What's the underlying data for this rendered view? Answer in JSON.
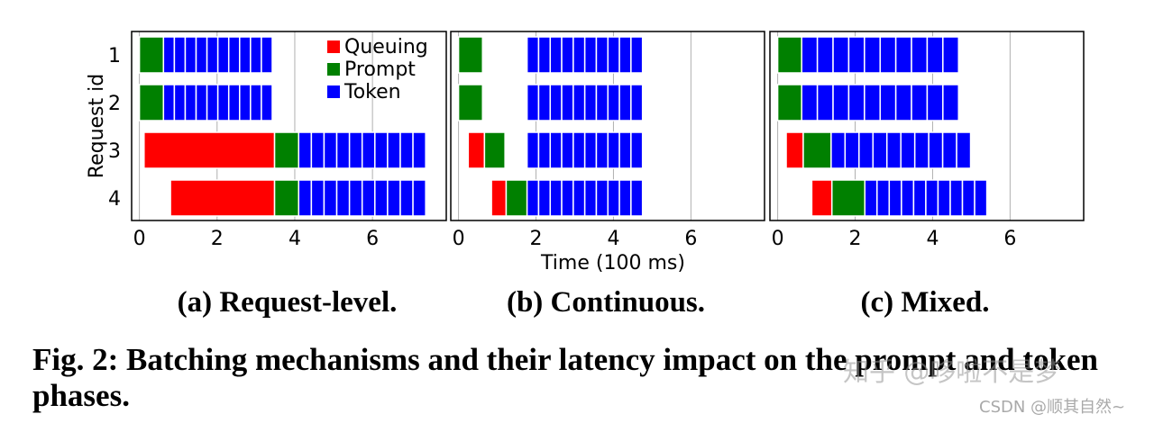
{
  "chart_data": [
    {
      "type": "bar",
      "orientation": "horizontal-segments",
      "subtitle": "(a) Request-level.",
      "ylabel": "Request id",
      "xlabel": "",
      "categories": [
        "1",
        "2",
        "3",
        "4"
      ],
      "xlim": [
        -0.2,
        7.9
      ],
      "xticks": [
        0,
        2,
        4,
        6
      ],
      "grid": "vertical",
      "legend": {
        "placement": "top-right",
        "entries": [
          {
            "name": "Queuing",
            "color": "#ff0000"
          },
          {
            "name": "Prompt",
            "color": "#008000"
          },
          {
            "name": "Token",
            "color": "#0000ff"
          }
        ]
      },
      "requests": [
        {
          "id": "1",
          "segments": [
            {
              "phase": "Prompt",
              "start": 0.0,
              "end": 0.62
            },
            {
              "phase": "Token",
              "start": 0.62,
              "end": 3.42,
              "count": 10
            }
          ]
        },
        {
          "id": "2",
          "segments": [
            {
              "phase": "Prompt",
              "start": 0.0,
              "end": 0.62
            },
            {
              "phase": "Token",
              "start": 0.62,
              "end": 3.42,
              "count": 10
            }
          ]
        },
        {
          "id": "3",
          "segments": [
            {
              "phase": "Queuing",
              "start": 0.12,
              "end": 3.48
            },
            {
              "phase": "Prompt",
              "start": 3.48,
              "end": 4.1
            },
            {
              "phase": "Token",
              "start": 4.1,
              "end": 7.37,
              "count": 10
            }
          ]
        },
        {
          "id": "4",
          "segments": [
            {
              "phase": "Queuing",
              "start": 0.8,
              "end": 3.48
            },
            {
              "phase": "Prompt",
              "start": 3.48,
              "end": 4.1
            },
            {
              "phase": "Token",
              "start": 4.1,
              "end": 7.37,
              "count": 10
            }
          ]
        }
      ]
    },
    {
      "type": "bar",
      "orientation": "horizontal-segments",
      "subtitle": "(b) Continuous.",
      "xlabel": "Time (100 ms)",
      "categories": [
        "1",
        "2",
        "3",
        "4"
      ],
      "xlim": [
        -0.2,
        7.9
      ],
      "xticks": [
        0,
        2,
        4,
        6
      ],
      "grid": "vertical",
      "requests": [
        {
          "id": "1",
          "segments": [
            {
              "phase": "Prompt",
              "start": 0.0,
              "end": 0.62
            },
            {
              "phase": "Token",
              "start": 1.77,
              "end": 4.75,
              "count": 10
            }
          ]
        },
        {
          "id": "2",
          "segments": [
            {
              "phase": "Prompt",
              "start": 0.0,
              "end": 0.62
            },
            {
              "phase": "Token",
              "start": 1.77,
              "end": 4.75,
              "count": 10
            }
          ]
        },
        {
          "id": "3",
          "segments": [
            {
              "phase": "Queuing",
              "start": 0.25,
              "end": 0.67
            },
            {
              "phase": "Prompt",
              "start": 0.67,
              "end": 1.2
            },
            {
              "phase": "Token",
              "start": 1.77,
              "end": 4.75,
              "count": 10
            }
          ]
        },
        {
          "id": "4",
          "segments": [
            {
              "phase": "Queuing",
              "start": 0.85,
              "end": 1.23
            },
            {
              "phase": "Prompt",
              "start": 1.23,
              "end": 1.77
            },
            {
              "phase": "Token",
              "start": 1.77,
              "end": 4.75,
              "count": 10
            }
          ]
        }
      ]
    },
    {
      "type": "bar",
      "orientation": "horizontal-segments",
      "subtitle": "(c) Mixed.",
      "xlabel": "",
      "categories": [
        "1",
        "2",
        "3",
        "4"
      ],
      "xlim": [
        -0.2,
        7.9
      ],
      "xticks": [
        0,
        2,
        4,
        6
      ],
      "grid": "vertical",
      "requests": [
        {
          "id": "1",
          "segments": [
            {
              "phase": "Prompt",
              "start": 0.0,
              "end": 0.62
            },
            {
              "phase": "Token",
              "start": 0.62,
              "end": 4.67,
              "count": 10
            }
          ]
        },
        {
          "id": "2",
          "segments": [
            {
              "phase": "Prompt",
              "start": 0.0,
              "end": 0.62
            },
            {
              "phase": "Token",
              "start": 0.62,
              "end": 4.67,
              "count": 10
            }
          ]
        },
        {
          "id": "3",
          "segments": [
            {
              "phase": "Queuing",
              "start": 0.22,
              "end": 0.66
            },
            {
              "phase": "Prompt",
              "start": 0.66,
              "end": 1.38
            },
            {
              "phase": "Token",
              "start": 1.38,
              "end": 4.98,
              "count": 10
            }
          ]
        },
        {
          "id": "4",
          "segments": [
            {
              "phase": "Queuing",
              "start": 0.88,
              "end": 1.4
            },
            {
              "phase": "Prompt",
              "start": 1.4,
              "end": 2.25
            },
            {
              "phase": "Token",
              "start": 2.25,
              "end": 5.4,
              "count": 10
            }
          ]
        }
      ]
    }
  ],
  "colors": {
    "Queuing": "#ff0000",
    "Prompt": "#008000",
    "Token": "#0000ff"
  },
  "caption": "Fig. 2: Batching mechanisms and their latency impact on the prompt and token phases.",
  "watermark": "知乎 @哆啦不是梦",
  "watermark2": "CSDN @顺其自然~"
}
